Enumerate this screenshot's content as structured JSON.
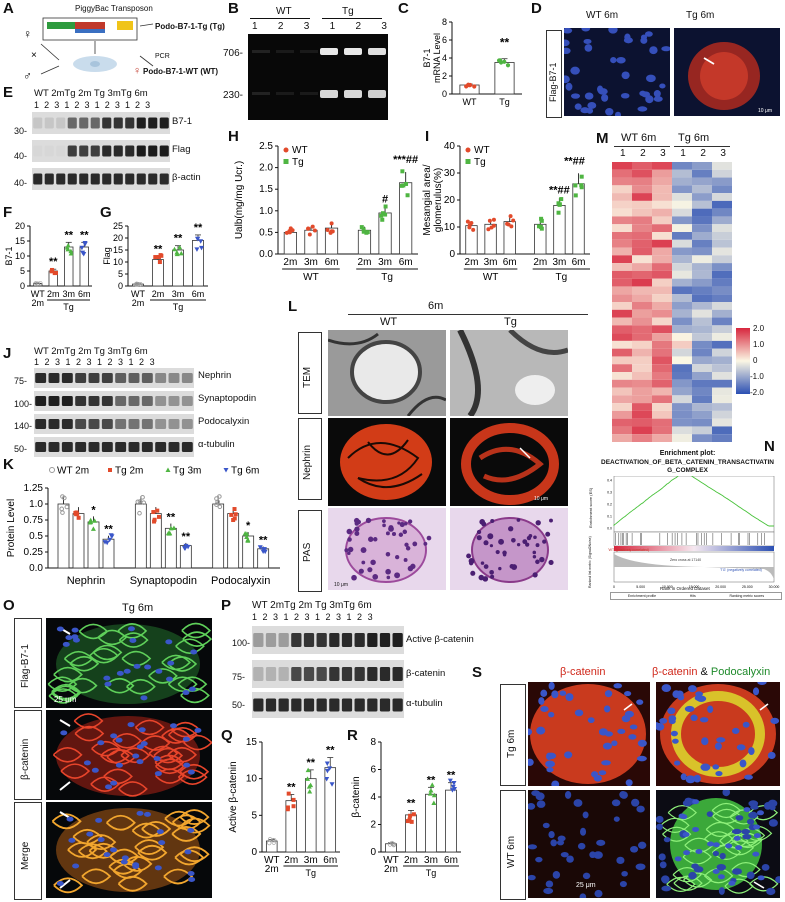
{
  "panels": {
    "A": {
      "letter": "A",
      "transposon": "PiggyBac Transposon",
      "tg": "Podo-B7-1-Tg (Tg)",
      "wt": "Podo-B7-1-WT (WT)",
      "pcr": "PCR",
      "female": "♀",
      "male": "♂",
      "cross": "×"
    },
    "B": {
      "letter": "B",
      "groups": [
        "WT",
        "Tg"
      ],
      "lanes": [
        "1",
        "2",
        "3",
        "1",
        "2",
        "3"
      ],
      "bands": [
        "706-",
        "230-"
      ]
    },
    "C": {
      "letter": "C",
      "ylabel": "B7-1\nmRNA Level",
      "sig": "**",
      "cats": [
        "WT",
        "Tg"
      ],
      "yticks": [
        "0",
        "2",
        "4",
        "6",
        "8"
      ]
    },
    "D": {
      "letter": "D",
      "cols": [
        "WT 6m",
        "Tg 6m"
      ],
      "rowlabel": "Flag-B7-1",
      "scale": "10 μm"
    },
    "E": {
      "letter": "E",
      "header": "WT 2mTg 2m Tg 3mTg 6m",
      "lanes": "1 2 3 1 2 3 1 2 3 1 2 3",
      "targets": [
        "B7-1",
        "Flag",
        "β-actin"
      ],
      "mw": [
        "30-",
        "40-",
        "40-"
      ]
    },
    "F": {
      "letter": "F",
      "ylabel": "B7-1",
      "yticks": [
        "0",
        "5",
        "10",
        "15",
        "20"
      ],
      "cats": [
        "WT\n2m",
        "2m",
        "3m",
        "6m"
      ],
      "group": "Tg",
      "sig": [
        "**",
        "**",
        "**"
      ]
    },
    "G": {
      "letter": "G",
      "ylabel": "Flag",
      "yticks": [
        "0",
        "5",
        "10",
        "15",
        "20",
        "25"
      ],
      "cats": [
        "WT\n2m",
        "2m",
        "3m",
        "6m"
      ],
      "group": "Tg",
      "sig": [
        "**",
        "**",
        "**"
      ]
    },
    "H": {
      "letter": "H",
      "ylabel": "Ualb(mg/mg Ucr.)",
      "legend": [
        "WT",
        "Tg"
      ],
      "yticks": [
        "0.0",
        "0.5",
        "1.0",
        "1.5",
        "2.0",
        "2.5"
      ],
      "cats": [
        "2m",
        "3m",
        "6m",
        "2m",
        "3m",
        "6m"
      ],
      "groups": [
        "WT",
        "Tg"
      ],
      "sig": [
        "#",
        "***##"
      ]
    },
    "I": {
      "letter": "I",
      "ylabel": "Mesangial area/\nglomerulus(%)",
      "legend": [
        "WT",
        "Tg"
      ],
      "yticks": [
        "0",
        "10",
        "20",
        "30",
        "40"
      ],
      "cats": [
        "2m",
        "3m",
        "6m",
        "2m",
        "3m",
        "6m"
      ],
      "groups": [
        "WT",
        "Tg"
      ],
      "sig": [
        "**##",
        "**##"
      ]
    },
    "J": {
      "letter": "J",
      "header": "WT 2mTg 2m Tg 3mTg 6m",
      "lanes": "1 2 3 1 2 3 1 2 3 1 2 3",
      "targets": [
        "Nephrin",
        "Synaptopodin",
        "Podocalyxin",
        "α-tubulin"
      ],
      "mw": [
        "75-",
        "100-",
        "140-",
        "50-"
      ]
    },
    "K": {
      "letter": "K",
      "ylabel": "Protein Level",
      "legend": [
        "WT 2m",
        "Tg 2m",
        "Tg 3m",
        "Tg 6m"
      ],
      "yticks": [
        "0.0",
        "0.25",
        "0.5",
        "0.75",
        "1.0",
        "1.25"
      ],
      "groups": [
        "Nephrin",
        "Synaptopodin",
        "Podocalyxin"
      ],
      "sig": [
        "*",
        "**",
        "**",
        "**",
        "*",
        "**"
      ]
    },
    "L": {
      "letter": "L",
      "time": "6m",
      "cols": [
        "WT",
        "Tg"
      ],
      "rows": [
        "TEM",
        "Nephrin",
        "PAS"
      ],
      "scale1": "10 μm",
      "scale2": "10 μm"
    },
    "M": {
      "letter": "M",
      "cols": [
        "WT 6m",
        "Tg 6m"
      ],
      "lanes": [
        "1",
        "2",
        "3",
        "1",
        "2",
        "3"
      ],
      "legend": [
        "2.0",
        "1.0",
        "0",
        "-1.0",
        "-2.0"
      ]
    },
    "N": {
      "letter": "N",
      "title": "Enrichment plot:",
      "subtitle": "DEACTIVATION_OF_BETA_CATENIN_TRANSACTIVATIN\nG_COMPLEX",
      "ylabel1": "Enrichment score (ES)",
      "ylabel2": "Ranked list metric (Signal2Noise)",
      "xlabel": "Rank in Ordered Dataset",
      "legend": [
        "Enrichment profile",
        "Hits",
        "Ranking metric scores"
      ],
      "wt_label": "'WT' (positively correlated)",
      "tg_label": "'TG' (negatively correlated)",
      "zero": "Zero cross at 17140",
      "es_ticks": [
        "0.4",
        "0.3",
        "0.2",
        "0.1",
        "0.0"
      ],
      "x_ticks": [
        "0",
        "5,000",
        "10,000",
        "15,000",
        "20,000",
        "25,000",
        "30,000"
      ]
    },
    "O": {
      "letter": "O",
      "title": "Tg 6m",
      "rows": [
        "Flag-B7-1",
        "β-catenin",
        "Merge"
      ],
      "scale": "25 μm"
    },
    "P": {
      "letter": "P",
      "header": "WT 2mTg 2m Tg 3mTg 6m",
      "lanes": "1 2 3 1 2 3 1 2 3 1 2 3",
      "targets": [
        "Active β-catenin",
        "β-catenin",
        "α-tubulin"
      ],
      "mw": [
        "100-",
        "75-",
        "50-"
      ]
    },
    "Q": {
      "letter": "Q",
      "ylabel": "Active β-catenin",
      "yticks": [
        "0",
        "5",
        "10",
        "15"
      ],
      "cats": [
        "WT\n2m",
        "2m",
        "3m",
        "6m"
      ],
      "group": "Tg",
      "sig": [
        "**",
        "**",
        "**"
      ]
    },
    "R": {
      "letter": "R",
      "ylabel": "β-catenin",
      "yticks": [
        "0",
        "2",
        "4",
        "6",
        "8"
      ],
      "cats": [
        "WT\n2m",
        "2m",
        "3m",
        "6m"
      ],
      "group": "Tg",
      "sig": [
        "**",
        "**",
        "**"
      ]
    },
    "S": {
      "letter": "S",
      "col1": "β-catenin",
      "col2a": "β-catenin",
      "col2b": " & ",
      "col2c": "Podocalyxin",
      "rows": [
        "Tg 6m",
        "WT 6m"
      ],
      "scale": "25 μm"
    }
  },
  "chart_data": [
    {
      "type": "bar",
      "id": "C",
      "categories": [
        "WT",
        "Tg"
      ],
      "values": [
        1.0,
        3.5
      ],
      "ylim": [
        0,
        8
      ],
      "ylabel": "B7-1 mRNA Level"
    },
    {
      "type": "bar",
      "id": "F",
      "categories": [
        "WT 2m",
        "Tg 2m",
        "Tg 3m",
        "Tg 6m"
      ],
      "values": [
        0.8,
        5.0,
        13.0,
        13.0
      ],
      "ylim": [
        0,
        20
      ],
      "ylabel": "B7-1"
    },
    {
      "type": "bar",
      "id": "G",
      "categories": [
        "WT 2m",
        "Tg 2m",
        "Tg 3m",
        "Tg 6m"
      ],
      "values": [
        0.8,
        11.0,
        15.0,
        19.0
      ],
      "ylim": [
        0,
        25
      ],
      "ylabel": "Flag"
    },
    {
      "type": "bar",
      "id": "H",
      "categories": [
        "WT 2m",
        "WT 3m",
        "WT 6m",
        "Tg 2m",
        "Tg 3m",
        "Tg 6m"
      ],
      "values": [
        0.5,
        0.55,
        0.6,
        0.55,
        0.95,
        1.65
      ],
      "ylim": [
        0,
        2.5
      ],
      "ylabel": "Ualb(mg/mg Ucr.)"
    },
    {
      "type": "bar",
      "id": "I",
      "categories": [
        "WT 2m",
        "WT 3m",
        "WT 6m",
        "Tg 2m",
        "Tg 3m",
        "Tg 6m"
      ],
      "values": [
        10.5,
        11,
        12,
        11,
        18,
        26
      ],
      "ylim": [
        0,
        40
      ],
      "ylabel": "Mesangial area/glomerulus(%)"
    },
    {
      "type": "bar",
      "id": "K",
      "categories": [
        "Nephrin",
        "Synaptopodin",
        "Podocalyxin"
      ],
      "series": [
        {
          "name": "WT 2m",
          "values": [
            1.0,
            1.0,
            1.0
          ]
        },
        {
          "name": "Tg 2m",
          "values": [
            0.85,
            0.85,
            0.85
          ]
        },
        {
          "name": "Tg 3m",
          "values": [
            0.72,
            0.62,
            0.5
          ]
        },
        {
          "name": "Tg 6m",
          "values": [
            0.45,
            0.35,
            0.3
          ]
        }
      ],
      "ylim": [
        0,
        1.25
      ],
      "ylabel": "Protein Level"
    },
    {
      "type": "bar",
      "id": "Q",
      "categories": [
        "WT 2m",
        "Tg 2m",
        "Tg 3m",
        "Tg 6m"
      ],
      "values": [
        1.5,
        7.0,
        10.0,
        11.5
      ],
      "ylim": [
        0,
        15
      ],
      "ylabel": "Active β-catenin"
    },
    {
      "type": "bar",
      "id": "R",
      "categories": [
        "WT 2m",
        "Tg 2m",
        "Tg 3m",
        "Tg 6m"
      ],
      "values": [
        0.6,
        2.7,
        4.2,
        4.5
      ],
      "ylim": [
        0,
        8
      ],
      "ylabel": "β-catenin"
    }
  ]
}
